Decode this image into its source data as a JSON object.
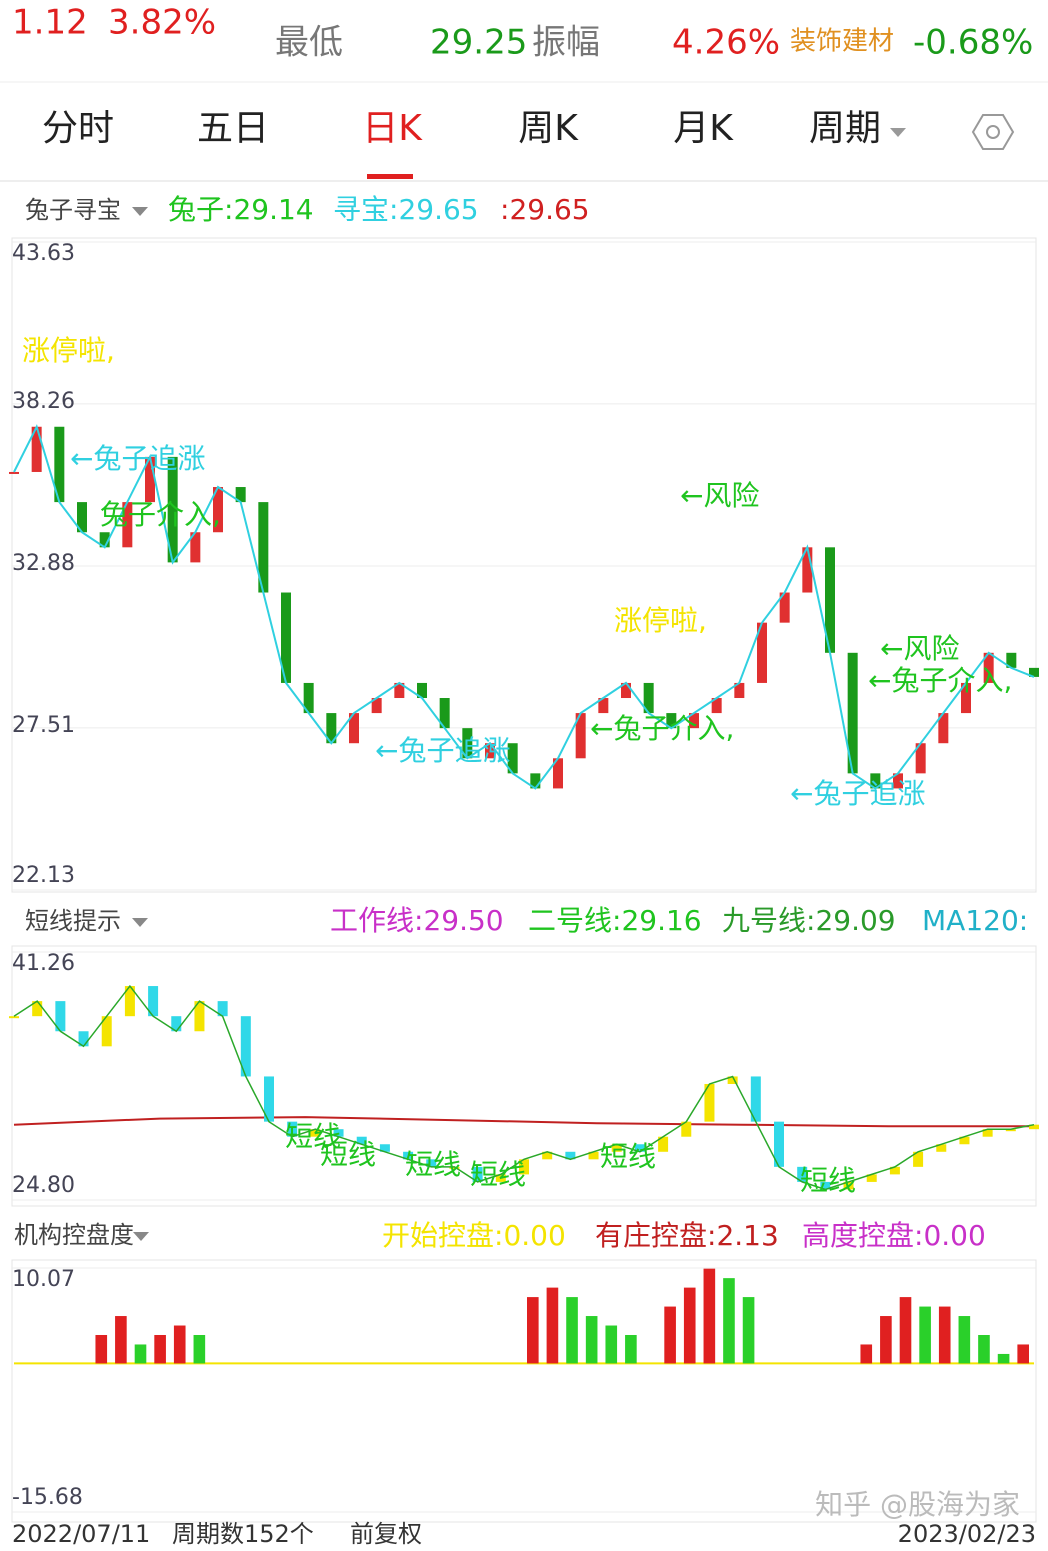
{
  "quote": {
    "change": "1.12",
    "change_pct": "3.82%",
    "low_label": "最低",
    "low": "29.25",
    "amplitude_label": "振幅",
    "amplitude": "4.26%",
    "sector": "装饰建材",
    "sector_change": "-0.68%"
  },
  "tabs": [
    "分时",
    "五日",
    "日K",
    "周K",
    "月K",
    "周期"
  ],
  "panel1": {
    "name": "兔子寻宝",
    "indicators": [
      {
        "label": "兔子:",
        "value": "29.14"
      },
      {
        "label": "寻宝:",
        "value": "29.65"
      },
      {
        "label": ":",
        "value": "29.65"
      }
    ],
    "ylim": [
      22.13,
      43.63
    ],
    "yticks": [
      43.63,
      38.26,
      32.88,
      27.51,
      22.13
    ],
    "close": [
      36,
      37.5,
      35,
      34,
      33.5,
      35,
      36.5,
      33,
      34,
      35.5,
      35,
      32,
      29,
      28,
      27,
      28,
      28.5,
      29,
      28.5,
      27.5,
      26.5,
      27,
      26,
      25.5,
      26.5,
      28,
      28.5,
      29,
      28,
      27.5,
      28,
      28.5,
      29,
      31,
      32,
      33.5,
      30,
      26,
      25.5,
      26,
      27,
      28,
      29,
      30,
      29.5,
      29.2
    ],
    "annotations": [
      "涨停啦,",
      "←兔子追涨",
      "兔子介入,",
      "←风险",
      "涨停啦,",
      "←兔子追涨",
      "←兔子介入,",
      "←风险",
      "←兔子介入,",
      "←兔子追涨"
    ]
  },
  "panel2": {
    "name": "短线提示",
    "indicators": [
      {
        "label": "工作线:",
        "value": "29.50"
      },
      {
        "label": "二号线:",
        "value": "29.16"
      },
      {
        "label": "九号线:",
        "value": "29.09"
      },
      {
        "label": "MA120:",
        "value": ""
      }
    ],
    "ylim": [
      24.8,
      41.26
    ],
    "yticks": [
      41.26,
      {
        "value": 24.8,
        "label": "24.80"
      }
    ],
    "close": [
      37,
      38,
      36,
      35,
      37,
      39,
      37,
      36,
      38,
      37,
      33,
      30,
      29,
      29.5,
      29,
      28.5,
      28,
      27.5,
      27,
      27,
      26,
      26.5,
      27.5,
      28,
      27.5,
      28,
      28.5,
      28,
      29,
      30,
      32.5,
      33,
      30,
      27,
      26,
      25.5,
      26,
      26.5,
      27,
      28,
      28.5,
      29,
      29.5,
      29.5,
      29.8
    ],
    "ma120": [
      29.8,
      30.2,
      30.3,
      30.1,
      29.9,
      29.8,
      29.7,
      29.7
    ],
    "annotations": [
      "短线",
      "短线",
      "短线",
      "短线",
      "短线",
      "短线"
    ]
  },
  "panel3": {
    "name": "机构控盘度",
    "indicators": [
      {
        "label": "开始控盘:",
        "value": "0.00"
      },
      {
        "label": "有庄控盘:",
        "value": "2.13"
      },
      {
        "label": "高度控盘:",
        "value": "0.00"
      }
    ],
    "ylim": [
      -15.68,
      10.07
    ],
    "yticks": [
      10.07,
      -15.68
    ],
    "values": [
      0,
      0,
      0,
      0,
      3,
      5,
      2,
      3,
      4,
      3,
      0,
      0,
      0,
      0,
      0,
      0,
      0,
      0,
      0,
      0,
      0,
      0,
      0,
      0,
      0,
      0,
      7,
      8,
      7,
      5,
      4,
      3,
      0,
      6,
      8,
      10,
      9,
      7,
      0,
      0,
      0,
      0,
      0,
      2,
      5,
      7,
      6,
      6,
      5,
      3,
      1,
      2
    ]
  },
  "footer": {
    "start": "2022/07/11",
    "count": "周期数152个",
    "adjust": "前复权",
    "end": "2023/02/23",
    "watermark": "知乎 @股海为家"
  }
}
